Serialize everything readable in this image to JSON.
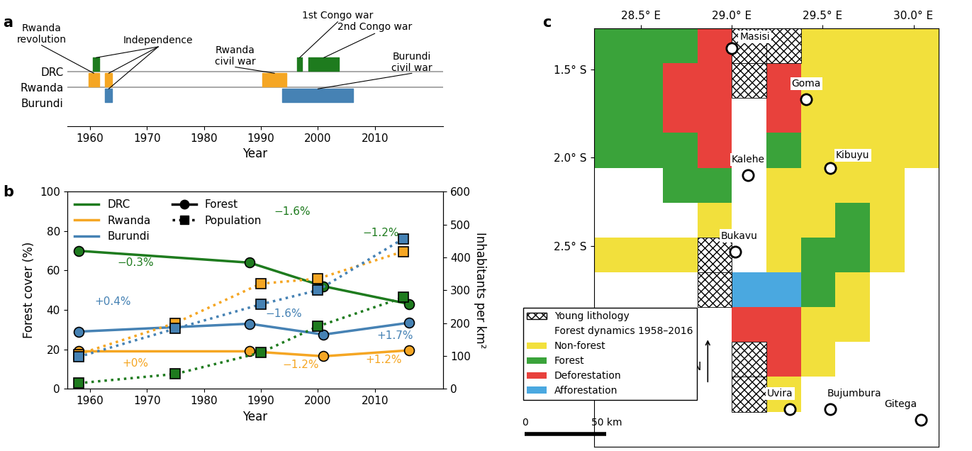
{
  "chart_data": [
    {
      "type": "timeline",
      "panel_label": "a",
      "xlabel": "Year",
      "xlim": [
        1956,
        2022
      ],
      "xticks": [
        1960,
        1970,
        1980,
        1990,
        2000,
        2010
      ],
      "rows": [
        {
          "name": "DRC",
          "color": "#1e7b1e"
        },
        {
          "name": "Rwanda",
          "color": "#f5a623"
        },
        {
          "name": "Burundi",
          "color": "#4682b4"
        }
      ],
      "events": [
        {
          "country": "Rwanda",
          "start": 1959.8,
          "end": 1961.6,
          "label": "Rwanda\nrevolution"
        },
        {
          "country": "DRC",
          "start": 1960.5,
          "end": 1961.7,
          "label": "Independence"
        },
        {
          "country": "Rwanda",
          "start": 1962.7,
          "end": 1963.9,
          "label": "Independence"
        },
        {
          "country": "Burundi",
          "start": 1962.7,
          "end": 1963.9,
          "label": "Independence"
        },
        {
          "country": "Rwanda",
          "start": 1990.3,
          "end": 1994.5,
          "label": "Rwanda\ncivil war"
        },
        {
          "country": "Burundi",
          "start": 1993.8,
          "end": 2006.2,
          "label": "Burundi\ncivil war"
        },
        {
          "country": "DRC",
          "start": 1996.4,
          "end": 1997.2,
          "label": "1st Congo war"
        },
        {
          "country": "DRC",
          "start": 1998.4,
          "end": 2003.7,
          "label": "2nd Congo war"
        }
      ]
    },
    {
      "type": "line",
      "panel_label": "b",
      "xlabel": "Year",
      "ylabel": "Forest cover (%)",
      "y2label": "Inhabitants per km²",
      "xlim": [
        1956,
        2022
      ],
      "xticks": [
        1960,
        1970,
        1980,
        1990,
        2000,
        2010
      ],
      "ylim": [
        0,
        100
      ],
      "yticks": [
        0,
        20,
        40,
        60,
        80,
        100
      ],
      "y2lim": [
        0,
        600
      ],
      "y2ticks": [
        0,
        100,
        200,
        300,
        400,
        500,
        600
      ],
      "legend": "upper left",
      "measures": [
        {
          "name": "Forest",
          "marker": "circle",
          "line_style": "solid"
        },
        {
          "name": "Population",
          "marker": "square",
          "line_style": "dotted",
          "axis": "y2"
        }
      ],
      "countries": [
        {
          "name": "DRC",
          "color": "#1e7b1e",
          "series": [
            {
              "x": [
                1958,
                1988,
                2001,
                2016
              ],
              "values": [
                70,
                64,
                52,
                43
              ]
            },
            {
              "x": [
                1958,
                1975,
                1990,
                2000,
                2015
              ],
              "values": [
                17,
                45,
                110,
                190,
                278
              ]
            }
          ],
          "rates": [
            "−0.3%",
            "−1.6%",
            "−1.2%"
          ]
        },
        {
          "name": "Rwanda",
          "color": "#f5a623",
          "series": [
            {
              "x": [
                1958,
                1988,
                2001,
                2016
              ],
              "values": [
                19,
                19,
                16.5,
                19.5
              ]
            },
            {
              "x": [
                1958,
                1975,
                1990,
                2000,
                2015
              ],
              "values": [
                105,
                200,
                320,
                335,
                418
              ]
            }
          ],
          "rates": [
            "+0%",
            "−1.2%",
            "+1.2%"
          ]
        },
        {
          "name": "Burundi",
          "color": "#4682b4",
          "series": [
            {
              "x": [
                1958,
                1988,
                2001,
                2016
              ],
              "values": [
                29,
                33,
                27.5,
                33.5
              ]
            },
            {
              "x": [
                1958,
                1975,
                1990,
                2000,
                2015
              ],
              "values": [
                97,
                183,
                257,
                300,
                457
              ]
            }
          ],
          "rates": [
            "+0.4%",
            "−1.6%",
            "+1.7%"
          ]
        }
      ]
    },
    {
      "type": "map",
      "panel_label": "c",
      "xlim": [
        28.24,
        30.14
      ],
      "ylim": [
        -3.63,
        -1.27
      ],
      "xticks": [
        {
          "value": 28.5,
          "label": "28.5° E"
        },
        {
          "value": 29.0,
          "label": "29.0° E"
        },
        {
          "value": 29.5,
          "label": "29.5° E"
        },
        {
          "value": 30.0,
          "label": "30.0° E"
        }
      ],
      "yticks": [
        {
          "value": -1.5,
          "label": "1.5° S"
        },
        {
          "value": -2.0,
          "label": "2.0° S"
        },
        {
          "value": -2.5,
          "label": "2.5° S"
        }
      ],
      "places": [
        {
          "name": "Masisi",
          "lon": 29.0,
          "lat": -1.38
        },
        {
          "name": "Goma",
          "lon": 29.41,
          "lat": -1.67
        },
        {
          "name": "Kalehe",
          "lon": 29.09,
          "lat": -2.1
        },
        {
          "name": "Kibuyu",
          "lon": 29.54,
          "lat": -2.06
        },
        {
          "name": "Bukavu",
          "lon": 29.02,
          "lat": -2.53
        },
        {
          "name": "Uvira",
          "lon": 29.32,
          "lat": -3.42
        },
        {
          "name": "Bujumbura",
          "lon": 29.54,
          "lat": -3.42
        },
        {
          "name": "Gitega",
          "lon": 30.04,
          "lat": -3.48
        }
      ],
      "legend": "lower left",
      "classes_heading": "Forest dynamics 1958–2016",
      "classes": [
        {
          "name": "Young lithology",
          "color": "#ffffff"
        },
        {
          "name": "Non-forest",
          "color": "#f2e03c"
        },
        {
          "name": "Forest",
          "color": "#3aa33a"
        },
        {
          "name": "Deforestation",
          "color": "#e8413c"
        },
        {
          "name": "Afforestation",
          "color": "#4aa8e0"
        }
      ],
      "cells": [
        [
          2,
          2,
          2,
          3,
          0,
          0,
          1,
          1,
          1,
          1
        ],
        [
          2,
          2,
          3,
          3,
          0,
          3,
          1,
          1,
          1,
          1
        ],
        [
          2,
          2,
          3,
          3,
          null,
          3,
          1,
          1,
          1,
          1
        ],
        [
          2,
          2,
          2,
          3,
          null,
          2,
          1,
          1,
          1,
          1
        ],
        [
          null,
          null,
          2,
          2,
          null,
          1,
          1,
          1,
          1,
          null
        ],
        [
          null,
          null,
          null,
          1,
          null,
          1,
          1,
          2,
          1,
          null
        ],
        [
          1,
          1,
          1,
          0,
          null,
          1,
          2,
          2,
          1,
          null
        ],
        [
          null,
          null,
          null,
          0,
          4,
          4,
          2,
          1,
          null,
          null
        ],
        [
          null,
          null,
          null,
          null,
          3,
          3,
          1,
          1,
          null,
          null
        ],
        [
          null,
          null,
          null,
          null,
          0,
          3,
          1,
          null,
          null,
          null
        ],
        [
          null,
          null,
          null,
          null,
          0,
          1,
          null,
          null,
          null,
          null
        ],
        [
          null,
          null,
          null,
          null,
          null,
          null,
          null,
          null,
          null,
          null
        ]
      ],
      "scale_bar": {
        "start": 0,
        "end": 50,
        "unit": "km"
      },
      "north_label": "N"
    }
  ]
}
